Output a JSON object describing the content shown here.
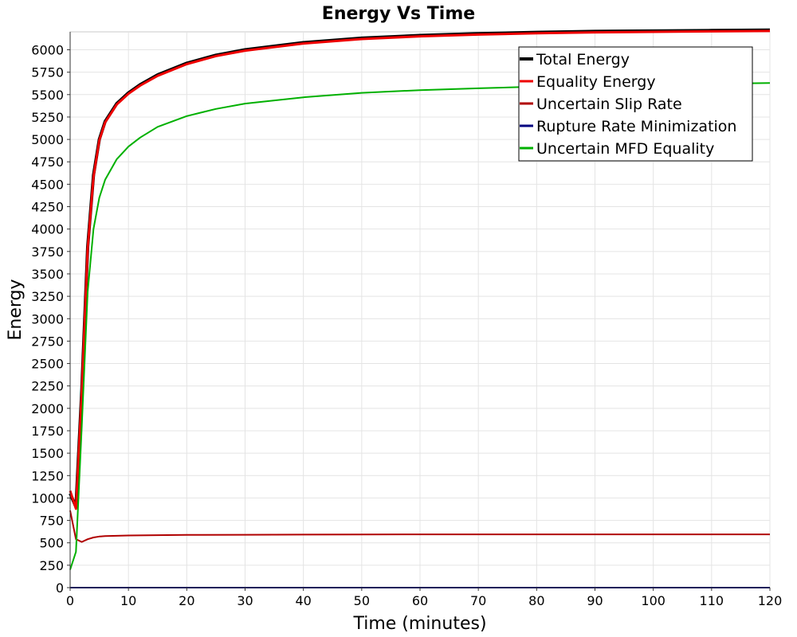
{
  "chart_data": {
    "type": "line",
    "title": "Energy Vs Time",
    "xlabel": "Time (minutes)",
    "ylabel": "Energy",
    "xlim": [
      0,
      120
    ],
    "ylim": [
      0,
      6200
    ],
    "xticks": [
      0,
      10,
      20,
      30,
      40,
      50,
      60,
      70,
      80,
      90,
      100,
      110,
      120
    ],
    "yticks": [
      0,
      250,
      500,
      750,
      1000,
      1250,
      1500,
      1750,
      2000,
      2250,
      2500,
      2750,
      3000,
      3250,
      3500,
      3750,
      4000,
      4250,
      4500,
      4750,
      5000,
      5250,
      5500,
      5750,
      6000
    ],
    "grid": true,
    "legend_position": "top-right",
    "series": [
      {
        "name": "Total Energy",
        "color": "#000000",
        "width": 4,
        "x": [
          0,
          1,
          2,
          3,
          4,
          5,
          6,
          8,
          10,
          12,
          15,
          20,
          25,
          30,
          40,
          50,
          60,
          70,
          80,
          90,
          100,
          110,
          120
        ],
        "y": [
          1050,
          900,
          2200,
          3800,
          4600,
          5000,
          5200,
          5400,
          5520,
          5610,
          5720,
          5850,
          5940,
          6000,
          6080,
          6130,
          6160,
          6180,
          6195,
          6205,
          6210,
          6215,
          6220
        ]
      },
      {
        "name": "Equality Energy",
        "color": "#ee0000",
        "width": 3,
        "x": [
          0,
          1,
          2,
          3,
          4,
          5,
          6,
          8,
          10,
          12,
          15,
          20,
          25,
          30,
          40,
          50,
          60,
          70,
          80,
          90,
          100,
          110,
          120
        ],
        "y": [
          1080,
          880,
          2180,
          3780,
          4580,
          4990,
          5190,
          5390,
          5510,
          5600,
          5710,
          5840,
          5930,
          5990,
          6070,
          6120,
          6150,
          6170,
          6185,
          6195,
          6200,
          6205,
          6210
        ]
      },
      {
        "name": "Uncertain Slip Rate",
        "color": "#b00000",
        "width": 2,
        "x": [
          0,
          1,
          2,
          3,
          4,
          5,
          6,
          8,
          10,
          15,
          20,
          30,
          40,
          50,
          60,
          80,
          100,
          120
        ],
        "y": [
          860,
          540,
          510,
          540,
          560,
          570,
          575,
          578,
          582,
          585,
          588,
          590,
          592,
          593,
          594,
          594,
          594,
          594
        ]
      },
      {
        "name": "Rupture Rate Minimization",
        "color": "#000080",
        "width": 2,
        "x": [
          0,
          120
        ],
        "y": [
          0,
          0
        ]
      },
      {
        "name": "Uncertain MFD Equality",
        "color": "#00b000",
        "width": 2,
        "x": [
          0,
          1,
          2,
          3,
          4,
          5,
          6,
          8,
          10,
          12,
          15,
          20,
          25,
          30,
          40,
          50,
          60,
          70,
          80,
          90,
          100,
          110,
          120
        ],
        "y": [
          200,
          400,
          1800,
          3300,
          4000,
          4350,
          4550,
          4780,
          4920,
          5020,
          5140,
          5260,
          5340,
          5400,
          5470,
          5520,
          5550,
          5570,
          5590,
          5600,
          5610,
          5620,
          5630
        ]
      }
    ]
  }
}
